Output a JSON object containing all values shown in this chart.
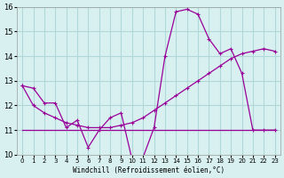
{
  "xlabel": "Windchill (Refroidissement éolien,°C)",
  "bg_color": "#d8f0f0",
  "line_color": "#990099",
  "grid_color": "#b0d8d8",
  "x": [
    0,
    1,
    2,
    3,
    4,
    5,
    6,
    7,
    8,
    9,
    10,
    11,
    12,
    13,
    14,
    15,
    16,
    17,
    18,
    19,
    20,
    21,
    22,
    23
  ],
  "y_main": [
    12.8,
    12.7,
    12.1,
    12.1,
    11.1,
    11.4,
    10.3,
    11.0,
    11.5,
    11.7,
    9.8,
    9.9,
    11.1,
    14.0,
    15.8,
    15.9,
    15.7,
    14.7,
    14.1,
    14.3,
    13.3,
    11.0,
    11.0,
    11.0
  ],
  "y_trend1": [
    12.8,
    12.0,
    11.7,
    11.5,
    11.3,
    11.2,
    11.1,
    11.1,
    11.1,
    11.2,
    11.3,
    11.5,
    11.8,
    12.1,
    12.4,
    12.7,
    13.0,
    13.3,
    13.6,
    13.9,
    14.1,
    14.2,
    14.3,
    14.2
  ],
  "y_flat": [
    11.0,
    11.0,
    11.0,
    11.0,
    11.0,
    11.0,
    11.0,
    11.0,
    11.0,
    11.0,
    11.0,
    11.0,
    11.0,
    11.0,
    11.0,
    11.0,
    11.0,
    11.0,
    11.0,
    11.0,
    11.0,
    11.0,
    11.0,
    11.0
  ],
  "ylim": [
    10.0,
    16.0
  ],
  "yticks": [
    10,
    11,
    12,
    13,
    14,
    15,
    16
  ],
  "xticks": [
    0,
    1,
    2,
    3,
    4,
    5,
    6,
    7,
    8,
    9,
    10,
    11,
    12,
    13,
    14,
    15,
    16,
    17,
    18,
    19,
    20,
    21,
    22,
    23
  ]
}
